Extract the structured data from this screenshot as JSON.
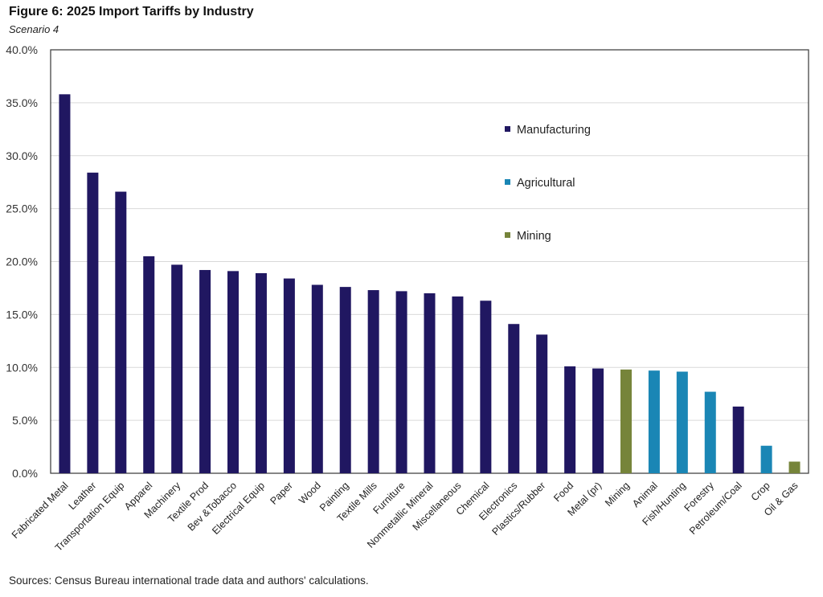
{
  "chart_data": {
    "type": "bar",
    "title": "Figure 6: 2025 Import Tariffs by Industry",
    "subtitle": "Scenario 4",
    "source": "Sources: Census Bureau international trade data and authors' calculations.",
    "xlabel": "",
    "ylabel": "",
    "ylim": [
      0,
      40
    ],
    "yticks": [
      "0.0%",
      "5.0%",
      "10.0%",
      "15.0%",
      "20.0%",
      "25.0%",
      "30.0%",
      "35.0%",
      "40.0%"
    ],
    "grid": true,
    "legend_position": "upper-right-center",
    "legend": [
      {
        "name": "Manufacturing",
        "color": "#201761"
      },
      {
        "name": "Agricultural",
        "color": "#1a86b5"
      },
      {
        "name": "Mining",
        "color": "#76843a"
      }
    ],
    "categories": [
      "Fabricated Metal",
      "Leather",
      "Transportation Equip",
      "Apparel",
      "Machinery",
      "Textile Prod",
      "Bev &Tobacco",
      "Electrical Equip",
      "Paper",
      "Wood",
      "Painting",
      "Textile Mills",
      "Furniture",
      "Nonmetallic Mineral",
      "Miscellaneous",
      "Chemical",
      "Electronics",
      "Plastics/Rubber",
      "Food",
      "Metal (pr)",
      "Mining",
      "Animal",
      "Fish/Hunting",
      "Forestry",
      "Petroleum/Coal",
      "Crop",
      "Oil & Gas"
    ],
    "values": [
      35.8,
      28.4,
      26.6,
      20.5,
      19.7,
      19.2,
      19.1,
      18.9,
      18.4,
      17.8,
      17.6,
      17.3,
      17.2,
      17.0,
      16.7,
      16.3,
      14.1,
      13.1,
      10.1,
      9.9,
      9.8,
      9.7,
      9.6,
      7.7,
      6.3,
      2.6,
      1.1
    ],
    "groups": [
      "Manufacturing",
      "Manufacturing",
      "Manufacturing",
      "Manufacturing",
      "Manufacturing",
      "Manufacturing",
      "Manufacturing",
      "Manufacturing",
      "Manufacturing",
      "Manufacturing",
      "Manufacturing",
      "Manufacturing",
      "Manufacturing",
      "Manufacturing",
      "Manufacturing",
      "Manufacturing",
      "Manufacturing",
      "Manufacturing",
      "Manufacturing",
      "Manufacturing",
      "Mining",
      "Agricultural",
      "Agricultural",
      "Agricultural",
      "Manufacturing",
      "Agricultural",
      "Mining"
    ]
  }
}
